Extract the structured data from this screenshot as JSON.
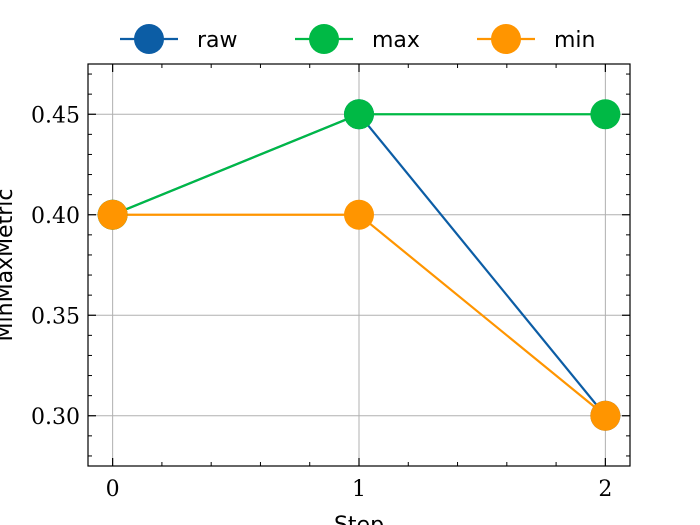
{
  "chart_data": {
    "type": "line",
    "x": [
      0,
      1,
      2
    ],
    "xlabel": "Step",
    "ylabel": "MinMaxMetric",
    "xlim": [
      -0.1,
      2.1
    ],
    "ylim": [
      0.275,
      0.475
    ],
    "x_ticks": [
      0,
      1,
      2
    ],
    "x_tick_labels": [
      "0",
      "1",
      "2"
    ],
    "y_ticks": [
      0.3,
      0.35,
      0.4,
      0.45
    ],
    "y_tick_labels": [
      "0.30",
      "0.35",
      "0.40",
      "0.45"
    ],
    "grid": true,
    "legend_position": "top-center",
    "series": [
      {
        "name": "raw",
        "values": [
          0.4,
          0.45,
          0.3
        ],
        "color": "#0c5da5"
      },
      {
        "name": "max",
        "values": [
          0.4,
          0.45,
          0.45
        ],
        "color": "#00b945"
      },
      {
        "name": "min",
        "values": [
          0.4,
          0.4,
          0.3
        ],
        "color": "#ff9500"
      }
    ]
  }
}
